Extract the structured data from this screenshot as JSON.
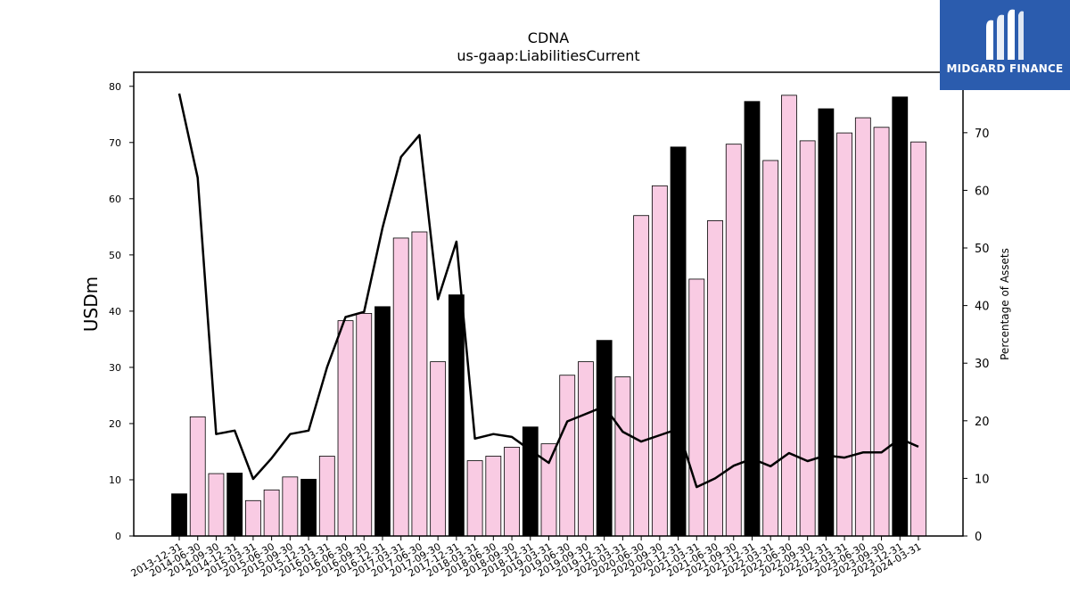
{
  "logo": {
    "text": "MIDGARD FINANCE"
  },
  "chart_data": {
    "type": "bar",
    "title": "CDNA",
    "subtitle": "us-gaap:LiabilitiesCurrent",
    "ylabel": "USDm",
    "y2label": "Percentage of Assets",
    "ylim": [
      0,
      82.5
    ],
    "y2lim": [
      0,
      80.5
    ],
    "yticks": [
      0,
      10,
      20,
      30,
      40,
      50,
      60,
      70,
      80
    ],
    "y2ticks": [
      0,
      10,
      20,
      30,
      40,
      50,
      60,
      70
    ],
    "colors": {
      "annual": "#000000",
      "quarterly": "#f9cbe3",
      "line": "#000000"
    },
    "categories": [
      "2013-12-31",
      "2014-06-30",
      "2014-09-30",
      "2014-12-31",
      "2015-03-31",
      "2015-06-30",
      "2015-09-30",
      "2015-12-31",
      "2016-03-31",
      "2016-06-30",
      "2016-09-30",
      "2016-12-31",
      "2017-03-31",
      "2017-06-30",
      "2017-09-30",
      "2017-12-31",
      "2018-03-31",
      "2018-06-30",
      "2018-09-30",
      "2018-12-31",
      "2019-03-31",
      "2019-06-30",
      "2019-09-30",
      "2019-12-31",
      "2020-03-31",
      "2020-06-30",
      "2020-09-30",
      "2020-12-31",
      "2021-03-31",
      "2021-06-30",
      "2021-09-30",
      "2021-12-31",
      "2022-03-31",
      "2022-06-30",
      "2022-09-30",
      "2022-12-31",
      "2023-03-31",
      "2023-06-30",
      "2023-09-30",
      "2023-12-31",
      "2024-03-31"
    ],
    "series": [
      {
        "values": [
          7.5,
          21.2,
          11.1,
          11.2,
          6.3,
          8.2,
          10.5,
          10.1,
          14.2,
          38.3,
          39.6,
          40.8,
          53.0,
          54.1,
          31.0,
          42.9,
          13.4,
          14.2,
          15.8,
          19.4,
          16.4,
          28.6,
          31.0,
          34.8,
          28.3,
          57.0,
          62.3,
          69.2,
          45.7,
          56.1,
          69.7,
          77.3,
          66.8,
          78.4,
          70.3,
          76.0,
          71.7,
          74.4,
          72.7,
          78.1,
          70.1
        ]
      },
      {
        "values": [
          76.8,
          62.2,
          17.7,
          18.3,
          9.9,
          13.5,
          17.7,
          18.3,
          29.3,
          38.0,
          38.9,
          53.5,
          65.8,
          69.6,
          41.1,
          51.1,
          16.9,
          17.7,
          17.2,
          14.9,
          12.7,
          19.9,
          21.2,
          22.5,
          18.1,
          16.4,
          17.5,
          18.6,
          8.5,
          10.0,
          12.2,
          13.4,
          12.1,
          14.4,
          13.0,
          14.0,
          13.6,
          14.5,
          14.5,
          16.9,
          15.5
        ]
      }
    ],
    "annual_flags": [
      true,
      false,
      false,
      true,
      false,
      false,
      false,
      true,
      false,
      false,
      false,
      true,
      false,
      false,
      false,
      true,
      false,
      false,
      false,
      true,
      false,
      false,
      false,
      true,
      false,
      false,
      false,
      true,
      false,
      false,
      false,
      true,
      false,
      false,
      false,
      true,
      false,
      false,
      false,
      true,
      false
    ]
  }
}
